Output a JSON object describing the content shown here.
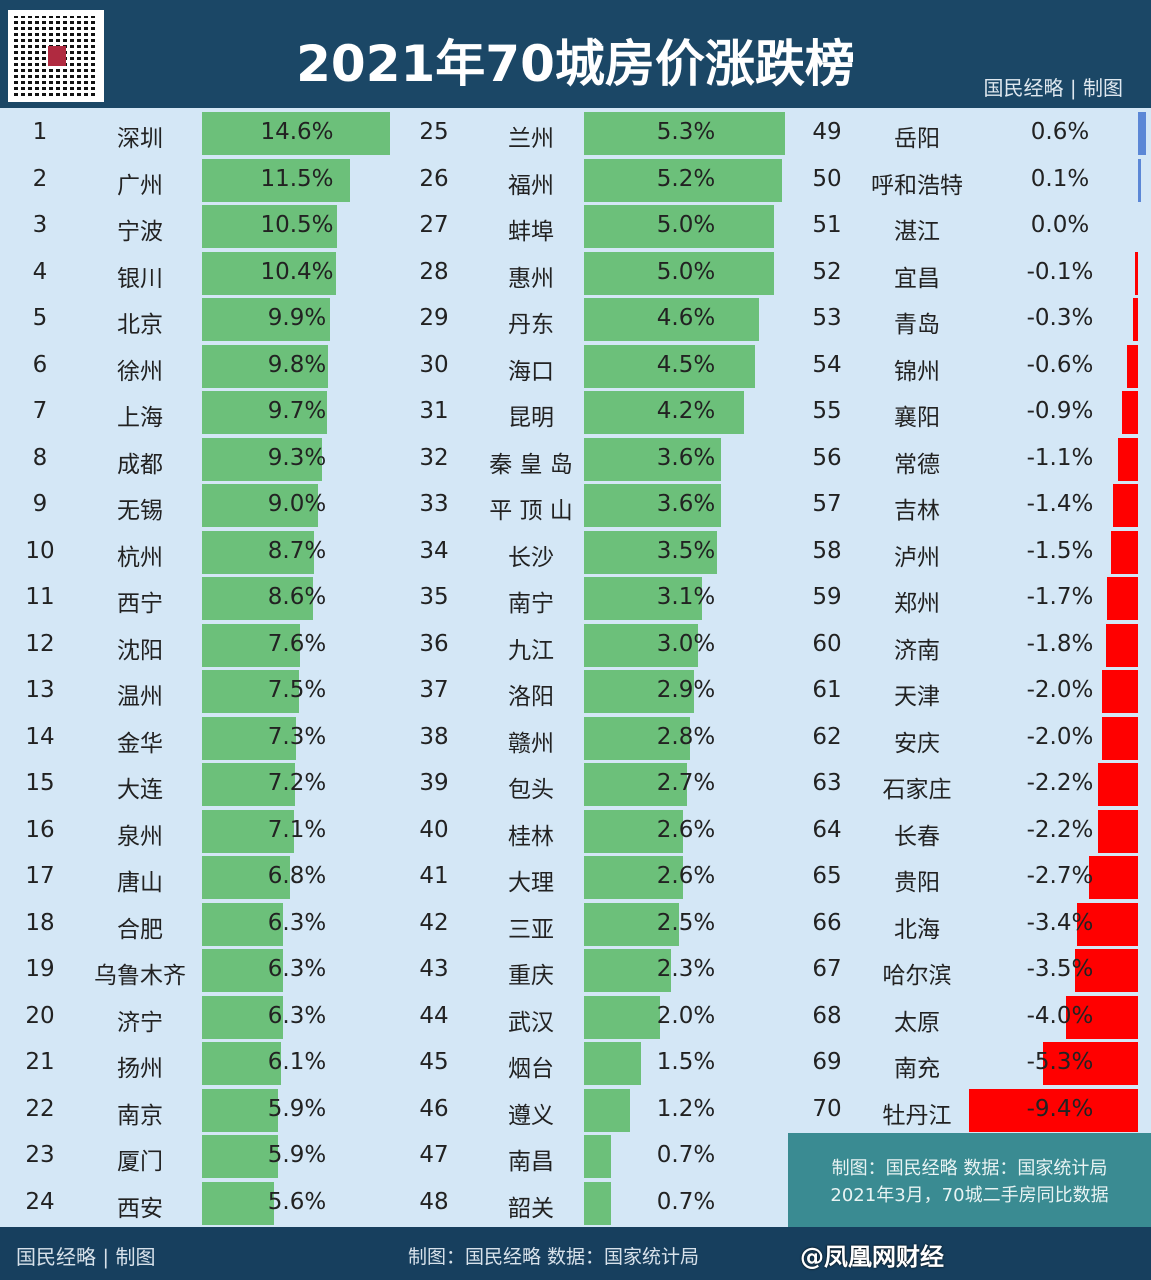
{
  "header": {
    "title": "2021年70城房价涨跌榜",
    "brand": "国民经略 | 制图"
  },
  "note": {
    "line1": "制图：国民经略  数据：国家统计局",
    "line2": "2021年3月，70城二手房同比数据"
  },
  "footer": {
    "brand": "国民经略 | 制图",
    "credit": "制图：国民经略 数据：国家统计局",
    "watermark": "@凤凰网财经"
  },
  "colors": {
    "header": "#1b4766",
    "background": "#d4e7f6",
    "positive": "#6cc07a",
    "negative": "#ff0000",
    "small_positive": "#5b87d6",
    "note": "#3a8b92"
  },
  "chart_data": {
    "type": "bar",
    "title": "2021年70城房价涨跌榜",
    "unit": "%",
    "categories": [
      "深圳",
      "广州",
      "宁波",
      "银川",
      "北京",
      "徐州",
      "上海",
      "成都",
      "无锡",
      "杭州",
      "西宁",
      "沈阳",
      "温州",
      "金华",
      "大连",
      "泉州",
      "唐山",
      "合肥",
      "乌鲁木齐",
      "济宁",
      "扬州",
      "南京",
      "厦门",
      "西安",
      "兰州",
      "福州",
      "蚌埠",
      "惠州",
      "丹东",
      "海口",
      "昆明",
      "秦 皇 岛",
      "平 顶 山",
      "长沙",
      "南宁",
      "九江",
      "洛阳",
      "赣州",
      "包头",
      "桂林",
      "大理",
      "三亚",
      "重庆",
      "武汉",
      "烟台",
      "遵义",
      "南昌",
      "韶关",
      "岳阳",
      "呼和浩特",
      "湛江",
      "宜昌",
      "青岛",
      "锦州",
      "襄阳",
      "常德",
      "吉林",
      "泸州",
      "郑州",
      "济南",
      "天津",
      "安庆",
      "石家庄",
      "长春",
      "贵阳",
      "北海",
      "哈尔滨",
      "太原",
      "南充",
      "牡丹江"
    ],
    "values": [
      14.6,
      11.5,
      10.5,
      10.4,
      9.9,
      9.8,
      9.7,
      9.3,
      9.0,
      8.7,
      8.6,
      7.6,
      7.5,
      7.3,
      7.2,
      7.1,
      6.8,
      6.3,
      6.3,
      6.3,
      6.1,
      5.9,
      5.9,
      5.6,
      5.3,
      5.2,
      5.0,
      5.0,
      4.6,
      4.5,
      4.2,
      3.6,
      3.6,
      3.5,
      3.1,
      3.0,
      2.9,
      2.8,
      2.7,
      2.6,
      2.6,
      2.5,
      2.3,
      2.0,
      1.5,
      1.2,
      0.7,
      0.7,
      0.6,
      0.1,
      0.0,
      -0.1,
      -0.3,
      -0.6,
      -0.9,
      -1.1,
      -1.4,
      -1.5,
      -1.7,
      -1.8,
      -2.0,
      -2.0,
      -2.2,
      -2.2,
      -2.7,
      -3.4,
      -3.5,
      -4.0,
      -5.3,
      -9.4
    ]
  }
}
